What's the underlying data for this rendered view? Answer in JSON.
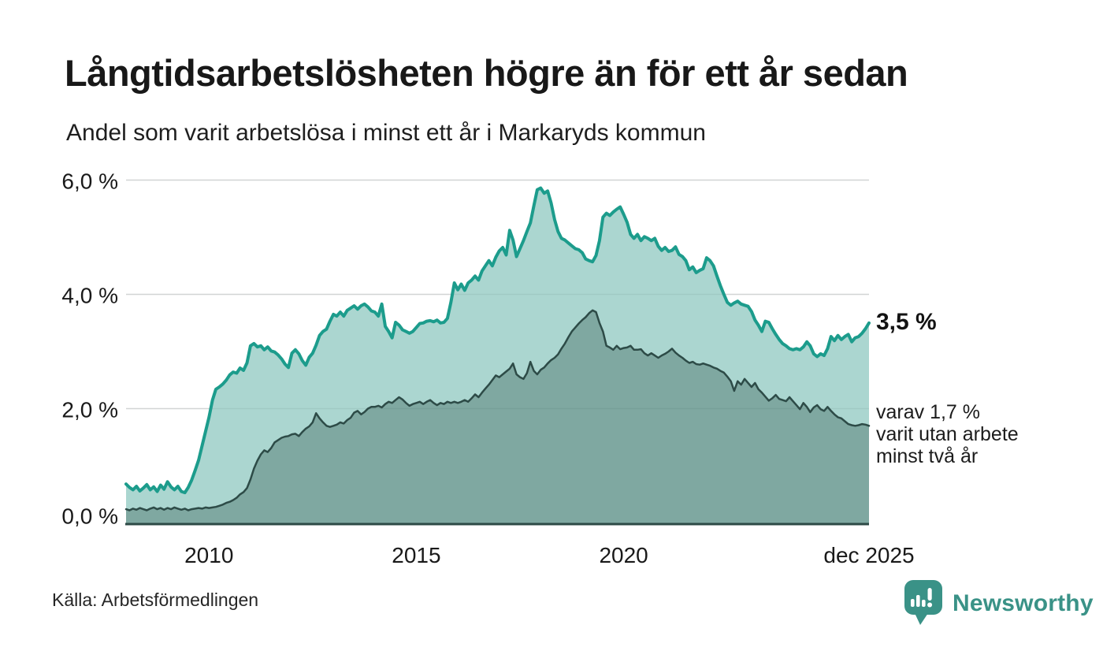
{
  "chart_data": {
    "type": "area",
    "title": "Långtidsarbetslösheten högre än för ett år sedan",
    "subtitle": "Andel som varit arbetslösa i minst ett år i Markaryds kommun",
    "unit": "%",
    "x_start_year": 2008,
    "points_per_year": 12,
    "ylim": [
      0,
      6.3
    ],
    "grid": true,
    "grid_color": "#e0e0e0",
    "axis_color": "#2c4a46",
    "y_ticks": [
      {
        "value": 0,
        "label": "0,0 %"
      },
      {
        "value": 2,
        "label": "2,0 %"
      },
      {
        "value": 4,
        "label": "4,0 %"
      },
      {
        "value": 6,
        "label": "6,0 %"
      }
    ],
    "x_ticks": [
      {
        "year": 2010.0,
        "label": "2010"
      },
      {
        "year": 2015.0,
        "label": "2015"
      },
      {
        "year": 2020.0,
        "label": "2020"
      },
      {
        "year": 2025.92,
        "label": "dec 2025"
      }
    ],
    "series": [
      {
        "name": "Andel arbetslösa minst ett år",
        "line_color": "#1c9c8c",
        "line_width": 4,
        "fill_color": "#a7d4cd",
        "fill_opacity": 0.95,
        "end_value": 3.5,
        "values": [
          0.68,
          0.62,
          0.58,
          0.64,
          0.56,
          0.61,
          0.67,
          0.58,
          0.63,
          0.55,
          0.66,
          0.59,
          0.72,
          0.63,
          0.58,
          0.64,
          0.55,
          0.53,
          0.62,
          0.75,
          0.92,
          1.1,
          1.35,
          1.6,
          1.85,
          2.15,
          2.34,
          2.38,
          2.43,
          2.5,
          2.59,
          2.64,
          2.62,
          2.71,
          2.67,
          2.8,
          3.1,
          3.14,
          3.08,
          3.1,
          3.03,
          3.08,
          3.01,
          2.99,
          2.94,
          2.87,
          2.78,
          2.72,
          2.97,
          3.03,
          2.96,
          2.84,
          2.76,
          2.9,
          2.97,
          3.11,
          3.28,
          3.35,
          3.39,
          3.53,
          3.65,
          3.62,
          3.69,
          3.62,
          3.72,
          3.76,
          3.8,
          3.74,
          3.8,
          3.83,
          3.78,
          3.71,
          3.69,
          3.62,
          3.83,
          3.44,
          3.35,
          3.24,
          3.51,
          3.46,
          3.38,
          3.35,
          3.32,
          3.35,
          3.42,
          3.49,
          3.5,
          3.53,
          3.54,
          3.52,
          3.55,
          3.5,
          3.51,
          3.58,
          3.86,
          4.2,
          4.08,
          4.18,
          4.07,
          4.2,
          4.25,
          4.32,
          4.25,
          4.41,
          4.5,
          4.59,
          4.5,
          4.65,
          4.76,
          4.82,
          4.69,
          5.12,
          4.95,
          4.66,
          4.8,
          4.94,
          5.1,
          5.25,
          5.55,
          5.83,
          5.86,
          5.77,
          5.81,
          5.6,
          5.31,
          5.1,
          4.98,
          4.95,
          4.9,
          4.85,
          4.8,
          4.78,
          4.73,
          4.62,
          4.59,
          4.57,
          4.68,
          4.94,
          5.35,
          5.42,
          5.38,
          5.44,
          5.49,
          5.53,
          5.4,
          5.26,
          5.05,
          4.98,
          5.05,
          4.94,
          5.01,
          4.98,
          4.94,
          4.98,
          4.84,
          4.77,
          4.82,
          4.75,
          4.77,
          4.83,
          4.7,
          4.66,
          4.59,
          4.43,
          4.48,
          4.38,
          4.42,
          4.45,
          4.64,
          4.59,
          4.5,
          4.32,
          4.15,
          4.0,
          3.86,
          3.81,
          3.85,
          3.88,
          3.83,
          3.81,
          3.79,
          3.7,
          3.55,
          3.46,
          3.35,
          3.53,
          3.51,
          3.4,
          3.3,
          3.21,
          3.14,
          3.1,
          3.05,
          3.03,
          3.05,
          3.03,
          3.08,
          3.17,
          3.1,
          2.96,
          2.91,
          2.96,
          2.93,
          3.05,
          3.26,
          3.19,
          3.28,
          3.21,
          3.26,
          3.3,
          3.17,
          3.24,
          3.26,
          3.32,
          3.4,
          3.5
        ]
      },
      {
        "name": "Varav arbetslösa minst två år",
        "line_color": "#2d4b47",
        "line_width": 2.5,
        "fill_color": "#7da69f",
        "fill_opacity": 0.97,
        "end_value": 1.7,
        "values": [
          0.24,
          0.22,
          0.25,
          0.23,
          0.26,
          0.24,
          0.22,
          0.25,
          0.27,
          0.24,
          0.26,
          0.23,
          0.26,
          0.24,
          0.27,
          0.25,
          0.23,
          0.25,
          0.22,
          0.24,
          0.25,
          0.26,
          0.25,
          0.27,
          0.26,
          0.27,
          0.28,
          0.3,
          0.32,
          0.35,
          0.37,
          0.4,
          0.44,
          0.5,
          0.54,
          0.61,
          0.76,
          0.95,
          1.09,
          1.2,
          1.27,
          1.24,
          1.31,
          1.41,
          1.45,
          1.49,
          1.51,
          1.52,
          1.55,
          1.56,
          1.52,
          1.59,
          1.65,
          1.69,
          1.76,
          1.92,
          1.83,
          1.76,
          1.7,
          1.68,
          1.7,
          1.72,
          1.76,
          1.74,
          1.8,
          1.84,
          1.93,
          1.96,
          1.9,
          1.94,
          2.0,
          2.03,
          2.03,
          2.05,
          2.02,
          2.08,
          2.12,
          2.1,
          2.15,
          2.2,
          2.16,
          2.1,
          2.05,
          2.08,
          2.1,
          2.12,
          2.08,
          2.12,
          2.15,
          2.1,
          2.06,
          2.1,
          2.08,
          2.12,
          2.1,
          2.12,
          2.1,
          2.12,
          2.15,
          2.12,
          2.18,
          2.25,
          2.2,
          2.28,
          2.35,
          2.42,
          2.5,
          2.58,
          2.55,
          2.6,
          2.65,
          2.7,
          2.79,
          2.6,
          2.55,
          2.52,
          2.62,
          2.82,
          2.66,
          2.6,
          2.68,
          2.72,
          2.79,
          2.85,
          2.89,
          2.95,
          3.05,
          3.14,
          3.25,
          3.35,
          3.42,
          3.49,
          3.55,
          3.6,
          3.67,
          3.72,
          3.69,
          3.5,
          3.35,
          3.1,
          3.07,
          3.03,
          3.1,
          3.04,
          3.06,
          3.07,
          3.1,
          3.03,
          3.03,
          3.04,
          2.97,
          2.93,
          2.97,
          2.93,
          2.89,
          2.93,
          2.96,
          3.0,
          3.05,
          2.98,
          2.93,
          2.89,
          2.84,
          2.8,
          2.82,
          2.78,
          2.77,
          2.79,
          2.77,
          2.75,
          2.72,
          2.7,
          2.66,
          2.63,
          2.56,
          2.48,
          2.31,
          2.48,
          2.42,
          2.52,
          2.45,
          2.38,
          2.45,
          2.34,
          2.28,
          2.21,
          2.14,
          2.18,
          2.24,
          2.17,
          2.15,
          2.13,
          2.2,
          2.13,
          2.06,
          1.99,
          2.1,
          2.03,
          1.94,
          2.02,
          2.06,
          1.99,
          1.96,
          2.03,
          1.96,
          1.9,
          1.85,
          1.83,
          1.78,
          1.73,
          1.71,
          1.7,
          1.71,
          1.73,
          1.72,
          1.7
        ]
      }
    ],
    "annotations": {
      "end_label": "3,5 %",
      "subset_label_lines": [
        "varav 1,7 %",
        "varit utan arbete",
        "minst två år"
      ]
    },
    "legend_position": "none"
  },
  "footer": {
    "source": "Källa: Arbetsförmedlingen",
    "brand": "Newsworthy",
    "brand_color": "#3a9287",
    "logo_icon": "bar-chart-speech-bubble-icon"
  }
}
